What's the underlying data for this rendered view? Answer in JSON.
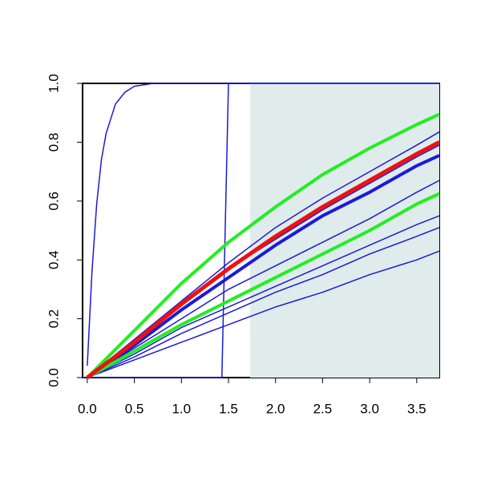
{
  "chart_data": {
    "type": "line",
    "xlim": [
      -0.05,
      3.74
    ],
    "ylim": [
      0,
      1
    ],
    "xticks": [
      {
        "value": 0,
        "label": "0.0"
      },
      {
        "value": 0.5,
        "label": "0.5"
      },
      {
        "value": 1,
        "label": "1.0"
      },
      {
        "value": 1.5,
        "label": "1.5"
      },
      {
        "value": 2,
        "label": "2.0"
      },
      {
        "value": 2.5,
        "label": "2.5"
      },
      {
        "value": 3,
        "label": "3.0"
      },
      {
        "value": 3.5,
        "label": "3.5"
      }
    ],
    "yticks": [
      {
        "value": 0,
        "label": "0.0"
      },
      {
        "value": 0.2,
        "label": "0.2"
      },
      {
        "value": 0.4,
        "label": "0.4"
      },
      {
        "value": 0.6,
        "label": "0.6"
      },
      {
        "value": 0.8,
        "label": "0.8"
      },
      {
        "value": 1,
        "label": "1.0"
      }
    ],
    "shaded_region": {
      "x": [
        1.73,
        3.74
      ],
      "color": "#dfeceb"
    },
    "series": [
      {
        "color": "#1a1adb",
        "width": 1.5,
        "x": [
          0,
          0.05,
          0.1,
          0.15,
          0.2,
          0.3,
          0.4,
          0.5,
          0.7,
          1.0,
          3.74
        ],
        "values": [
          0.04,
          0.36,
          0.59,
          0.74,
          0.83,
          0.93,
          0.97,
          0.99,
          1,
          1,
          1
        ]
      },
      {
        "color": "#1a1adb",
        "width": 1.5,
        "x": [
          -0.05,
          1.43,
          1.5,
          3.74
        ],
        "values": [
          0,
          0,
          1,
          1
        ]
      },
      {
        "color": "#1a1adb",
        "width": 1.5,
        "x": [
          0,
          0.5,
          1,
          1.5,
          2,
          2.5,
          3,
          3.5,
          3.74
        ],
        "values": [
          0,
          0.13,
          0.26,
          0.39,
          0.51,
          0.61,
          0.7,
          0.79,
          0.835
        ]
      },
      {
        "color": "#1a1adb",
        "width": 1.5,
        "x": [
          0,
          0.5,
          1,
          1.5,
          2,
          2.5,
          3,
          3.5,
          3.74
        ],
        "values": [
          0,
          0.12,
          0.25,
          0.37,
          0.47,
          0.57,
          0.66,
          0.75,
          0.79
        ]
      },
      {
        "color": "#1a1adb",
        "width": 4,
        "x": [
          0,
          0.5,
          1,
          1.5,
          2,
          2.5,
          3,
          3.5,
          3.74
        ],
        "values": [
          0,
          0.11,
          0.23,
          0.34,
          0.45,
          0.55,
          0.63,
          0.72,
          0.755
        ]
      },
      {
        "color": "#1a1adb",
        "width": 1.5,
        "x": [
          0,
          0.5,
          1,
          1.5,
          2,
          2.5,
          3,
          3.5,
          3.74
        ],
        "values": [
          0,
          0.1,
          0.2,
          0.3,
          0.38,
          0.46,
          0.54,
          0.63,
          0.67
        ]
      },
      {
        "color": "#1a1adb",
        "width": 1.5,
        "x": [
          0,
          0.5,
          1,
          1.5,
          2,
          2.5,
          3,
          3.5,
          3.74
        ],
        "values": [
          0,
          0.08,
          0.17,
          0.24,
          0.31,
          0.38,
          0.45,
          0.52,
          0.55
        ]
      },
      {
        "color": "#1a1adb",
        "width": 1.5,
        "x": [
          0,
          0.5,
          1,
          1.5,
          2,
          2.5,
          3,
          3.5,
          3.74
        ],
        "values": [
          0,
          0.07,
          0.15,
          0.22,
          0.29,
          0.35,
          0.42,
          0.48,
          0.51
        ]
      },
      {
        "color": "#1a1adb",
        "width": 1.5,
        "x": [
          0,
          0.5,
          1,
          1.5,
          2,
          2.5,
          3,
          3.5,
          3.74
        ],
        "values": [
          0,
          0.06,
          0.12,
          0.18,
          0.24,
          0.29,
          0.35,
          0.4,
          0.43
        ]
      },
      {
        "color": "#22ee22",
        "width": 4,
        "x": [
          0,
          0.5,
          1,
          1.5,
          2,
          2.5,
          3,
          3.5,
          3.74
        ],
        "values": [
          0,
          0.16,
          0.32,
          0.46,
          0.58,
          0.69,
          0.78,
          0.86,
          0.895
        ]
      },
      {
        "color": "#22ee22",
        "width": 4,
        "x": [
          0,
          0.5,
          1,
          1.5,
          2,
          2.5,
          3,
          3.5,
          3.74
        ],
        "values": [
          0,
          0.09,
          0.18,
          0.26,
          0.34,
          0.42,
          0.5,
          0.59,
          0.625
        ]
      },
      {
        "color": "#ee1111",
        "width": 5,
        "x": [
          0,
          0.5,
          1,
          1.5,
          2,
          2.5,
          3,
          3.5,
          3.74
        ],
        "values": [
          0,
          0.12,
          0.25,
          0.37,
          0.48,
          0.58,
          0.67,
          0.76,
          0.8
        ]
      }
    ]
  }
}
